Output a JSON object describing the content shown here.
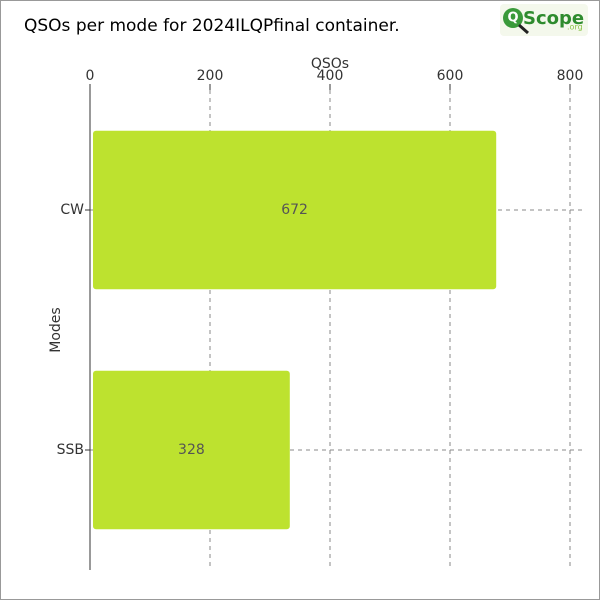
{
  "chart_data": {
    "type": "bar",
    "orientation": "horizontal",
    "title": "QSOs per mode for 2024ILQPfinal container.",
    "logo": {
      "mark": "Q",
      "name": "Scope",
      "domain": ".org"
    },
    "x_label": "QSOs",
    "y_label": "Modes",
    "categories": [
      "CW",
      "SSB"
    ],
    "values": [
      672,
      328
    ],
    "color": "#bde22f",
    "xlim": [
      0,
      800
    ],
    "xticks": [
      0,
      200,
      400,
      600,
      800
    ],
    "grid": true
  }
}
